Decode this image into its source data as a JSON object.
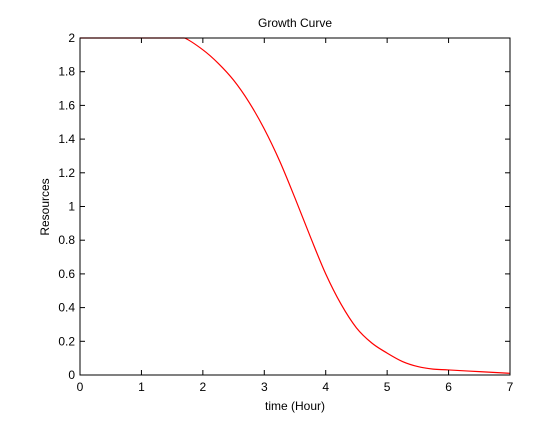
{
  "chart_data": {
    "type": "line",
    "title": "Growth Curve",
    "xlabel": "time (Hour)",
    "ylabel": "Resources",
    "xlim": [
      0,
      7
    ],
    "ylim": [
      0,
      2
    ],
    "xticks": [
      0,
      1,
      2,
      3,
      4,
      5,
      6,
      7
    ],
    "yticks": [
      0,
      0.2,
      0.4,
      0.6,
      0.8,
      1,
      1.2,
      1.4,
      1.6,
      1.8,
      2
    ],
    "xtick_labels": [
      "0",
      "1",
      "2",
      "3",
      "4",
      "5",
      "6",
      "7"
    ],
    "ytick_labels": [
      "0",
      "0.2",
      "0.4",
      "0.6",
      "0.8",
      "1",
      "1.2",
      "1.4",
      "1.6",
      "1.8",
      "2"
    ],
    "grid": false,
    "series": [
      {
        "color": "#ff0000",
        "x": [
          0,
          0.5,
          1.0,
          1.5,
          1.7,
          2.0,
          2.25,
          2.5,
          2.75,
          3.0,
          3.25,
          3.5,
          3.75,
          4.0,
          4.25,
          4.5,
          4.75,
          5.0,
          5.25,
          5.5,
          5.75,
          6.0,
          6.5,
          7.0
        ],
        "y": [
          2.0,
          2.0,
          2.0,
          2.0,
          2.0,
          1.93,
          1.85,
          1.75,
          1.62,
          1.46,
          1.27,
          1.05,
          0.82,
          0.6,
          0.42,
          0.28,
          0.19,
          0.13,
          0.08,
          0.05,
          0.035,
          0.03,
          0.02,
          0.01
        ]
      }
    ]
  }
}
